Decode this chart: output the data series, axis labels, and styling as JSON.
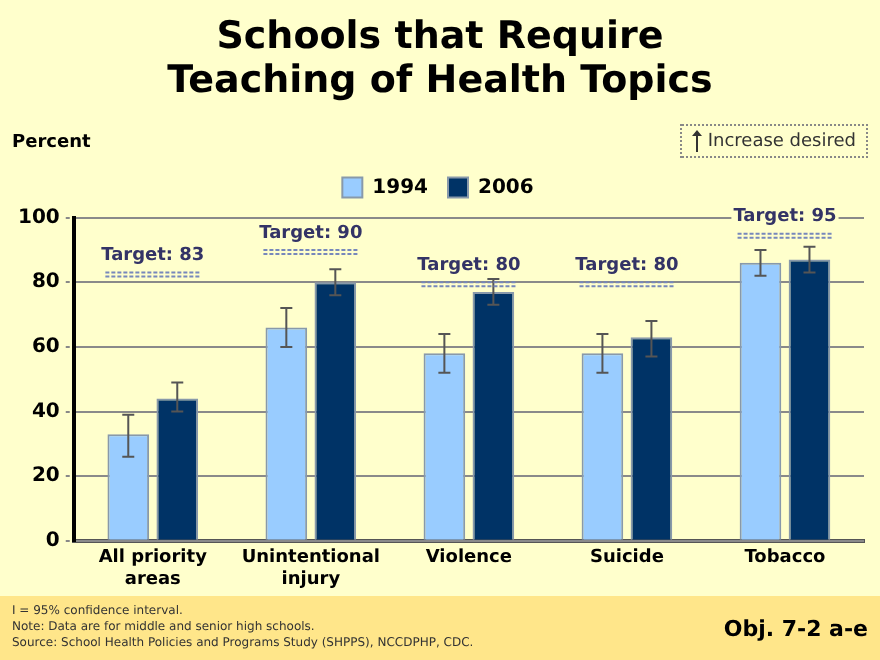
{
  "chart_data": {
    "type": "bar",
    "title": "Schools that Require Teaching of Health Topics",
    "ylabel": "Percent",
    "categories": [
      "All priority areas",
      "Unintentional injury",
      "Violence",
      "Suicide",
      "Tobacco"
    ],
    "series": [
      {
        "name": "1994",
        "color": "#99ccff",
        "values": [
          33,
          66,
          58,
          58,
          86
        ],
        "errors": [
          [
            26,
            39
          ],
          [
            60,
            72
          ],
          [
            52,
            64
          ],
          [
            52,
            64
          ],
          [
            82,
            90
          ]
        ]
      },
      {
        "name": "2006",
        "color": "#003366",
        "values": [
          44,
          80,
          77,
          63,
          87
        ],
        "errors": [
          [
            40,
            49
          ],
          [
            76,
            84
          ],
          [
            73,
            81
          ],
          [
            57,
            68
          ],
          [
            83,
            91
          ]
        ]
      }
    ],
    "ylim": [
      0,
      100
    ],
    "yticks": [
      0,
      20,
      40,
      60,
      80,
      100
    ],
    "grid": "y",
    "legend": "top",
    "ref_lines": [
      {
        "axis": "y",
        "value": 83,
        "label": "Target: 83"
      },
      {
        "axis": "y",
        "value": 90,
        "label": "Target: 90"
      },
      {
        "axis": "y",
        "value": 80,
        "label": "Target: 80"
      },
      {
        "axis": "y",
        "value": 80,
        "label": "Target: 80"
      },
      {
        "axis": "y",
        "value": 95,
        "label": "Target: 95"
      }
    ],
    "annotations": [
      "Increase desired",
      "I = 95% confidence interval.",
      "Note: Data are for middle and senior high schools.",
      "Source: School Health Policies and Programs Study (SHPPS), NCCDPHP, CDC.",
      "Obj. 7-2 a-e"
    ]
  }
}
